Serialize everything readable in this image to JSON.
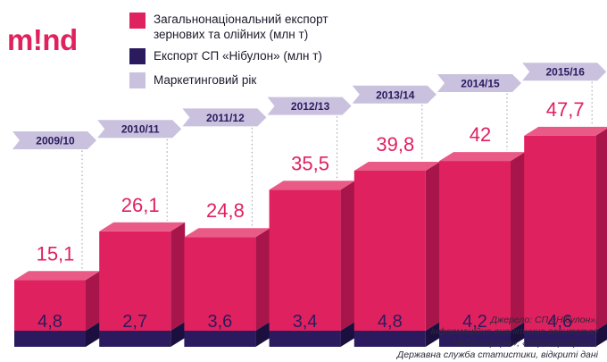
{
  "logo": {
    "text": "m!nd"
  },
  "legend": [
    {
      "label": "Загальнонаціональний експорт зернових та олійних (млн т)",
      "color": "#e0215f"
    },
    {
      "label": "Експорт СП «Нібулон» (млн т)",
      "color": "#2b1b5e"
    },
    {
      "label": "Маркетинговий рік",
      "color": "#c9c1de"
    }
  ],
  "source_lines": [
    "Джерело: СП «Нібулон»,",
    "інформаційно-аналітичне агентство",
    "«АПК-Інформ», «Укрлагропром»,",
    "Державна служба статистики, відкриті дані"
  ],
  "chart_data": {
    "type": "bar",
    "title": "",
    "xlabel": "",
    "ylabel": "",
    "categories": [
      "2009/10",
      "2010/11",
      "2011/12",
      "2012/13",
      "2013/14",
      "2014/15",
      "2015/16"
    ],
    "series": [
      {
        "name": "Загальнонаціональний експорт зернових та олійних (млн т)",
        "values": [
          15.1,
          26.1,
          24.8,
          35.5,
          39.8,
          42,
          47.7
        ],
        "labels": [
          "15,1",
          "26,1",
          "24,8",
          "35,5",
          "39,8",
          "42",
          "47,7"
        ]
      },
      {
        "name": "Експорт СП «Нібулон» (млн т)",
        "values": [
          4.8,
          2.7,
          3.6,
          3.4,
          4.8,
          4.2,
          4.6
        ],
        "labels": [
          "4,8",
          "2,7",
          "3,6",
          "3,4",
          "4,8",
          "4,2",
          "4,6"
        ]
      }
    ],
    "ylim": [
      0,
      50
    ],
    "colors": {
      "total": "#e0215f",
      "total_top": "#ea5a87",
      "total_side": "#a8154a",
      "nibulon": "#2b1b5e",
      "nibulon_side": "#1a0f3e",
      "year": "#c9c1de",
      "year_text": "#2b1b5e",
      "label": "#e0215f",
      "inner_label": "#2b1b5e",
      "guide": "#9a98a8"
    }
  }
}
